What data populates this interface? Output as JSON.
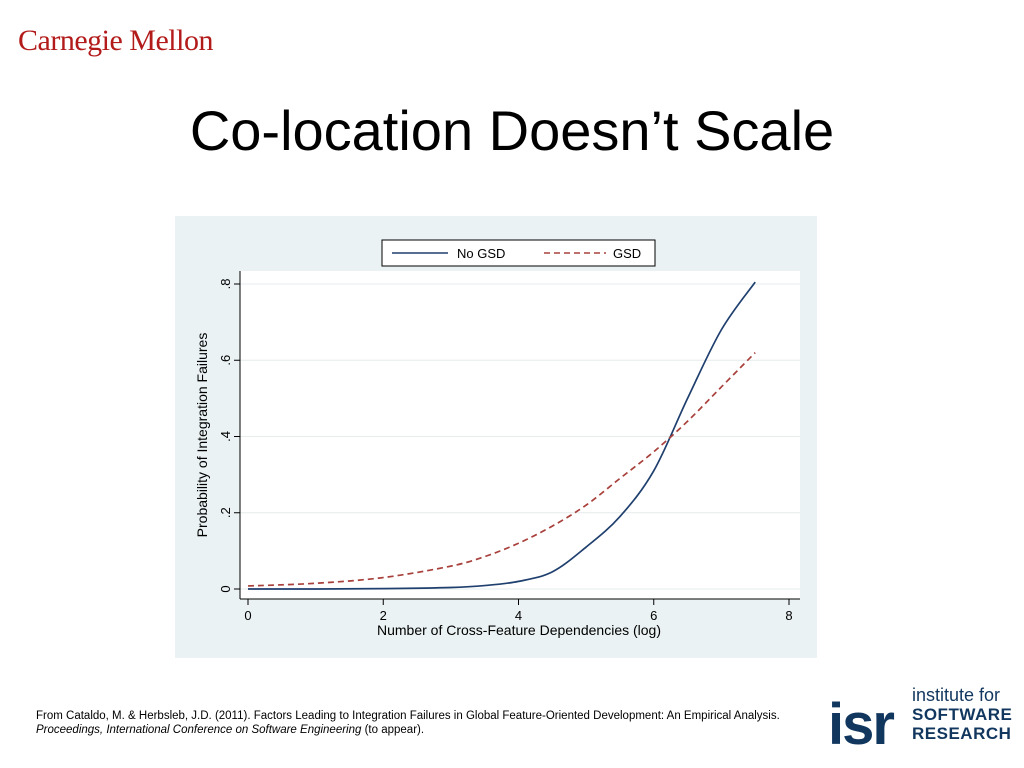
{
  "header": {
    "logo_text": "Carnegie Mellon",
    "title": "Co-location Doesn’t Scale"
  },
  "colors": {
    "brand_red": "#b31b1b",
    "no_gsd_line": "#1f3f6e",
    "gsd_line": "#a8403b",
    "chart_background": "#eaf2f3"
  },
  "chart_data": {
    "type": "line",
    "title": "",
    "xlabel": "Number of Cross-Feature Dependencies (log)",
    "ylabel": "Probability of Integration Failures",
    "xlim": [
      0,
      8
    ],
    "ylim": [
      0,
      0.8
    ],
    "xticks": [
      0,
      2,
      4,
      6,
      8
    ],
    "xtick_labels": [
      "0",
      "2",
      "4",
      "6",
      "8"
    ],
    "yticks": [
      0,
      0.2,
      0.4,
      0.6,
      0.8
    ],
    "ytick_labels": [
      "0",
      ".2",
      ".4",
      ".6",
      ".8"
    ],
    "grid": true,
    "legend_position": "top",
    "series": [
      {
        "name": "No GSD",
        "style": "solid",
        "x": [
          0,
          1,
          2,
          3,
          3.5,
          4,
          4.5,
          5,
          5.5,
          6,
          6.5,
          7,
          7.5
        ],
        "values": [
          0.0,
          0.0,
          0.001,
          0.004,
          0.009,
          0.02,
          0.045,
          0.11,
          0.19,
          0.31,
          0.5,
          0.68,
          0.805
        ]
      },
      {
        "name": "GSD",
        "style": "dashed",
        "x": [
          0,
          1,
          2,
          3,
          3.5,
          4,
          4.5,
          5,
          5.5,
          6,
          6.5,
          7,
          7.5
        ],
        "values": [
          0.008,
          0.015,
          0.03,
          0.06,
          0.085,
          0.12,
          0.165,
          0.22,
          0.29,
          0.36,
          0.44,
          0.53,
          0.62
        ]
      }
    ]
  },
  "footer": {
    "citation_plain": "From Cataldo, M. & Herbsleb, J.D. (2011).  Factors Leading to Integration Failures in Global Feature-Oriented Development: An Empirical Analysis.  ",
    "citation_italic": "Proceedings, International Conference on Software Engineering",
    "citation_tail": " (to appear).",
    "isr_mark": "isr",
    "isr_line1": "institute for",
    "isr_line2": "SOFTWARE",
    "isr_line3": "RESEARCH"
  }
}
